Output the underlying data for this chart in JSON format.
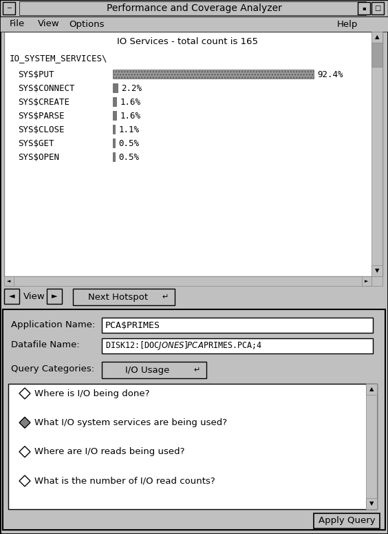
{
  "title": "Performance and Coverage Analyzer",
  "chart_title": "IO Services - total count is 165",
  "category_header": "IO_SYSTEM_SERVICES\\",
  "bars": [
    {
      "label": "SYS$PUT",
      "value": 92.4,
      "pct": "92.4%"
    },
    {
      "label": "SYS$CONNECT",
      "value": 2.2,
      "pct": "2.2%"
    },
    {
      "label": "SYS$CREATE",
      "value": 1.6,
      "pct": "1.6%"
    },
    {
      "label": "SYS$PARSE",
      "value": 1.6,
      "pct": "1.6%"
    },
    {
      "label": "SYS$CLOSE",
      "value": 1.1,
      "pct": "1.1%"
    },
    {
      "label": "SYS$GET",
      "value": 0.5,
      "pct": "0.5%"
    },
    {
      "label": "SYS$OPEN",
      "value": 0.5,
      "pct": "0.5%"
    }
  ],
  "bg_color": "#c0c0c0",
  "window_bg": "#ffffff",
  "app_name": "PCA$PRIMES",
  "datafile": "DISK12:[DOC$JONES]PCA$PRIMES.PCA;4",
  "query_cat": "I/O Usage",
  "queries": [
    {
      "text": "Where is I/O being done?",
      "selected": false
    },
    {
      "text": "What I/O system services are being used?",
      "selected": true
    },
    {
      "text": "Where are I/O reads being used?",
      "selected": false
    },
    {
      "text": "What is the number of I/O read counts?",
      "selected": false
    }
  ]
}
